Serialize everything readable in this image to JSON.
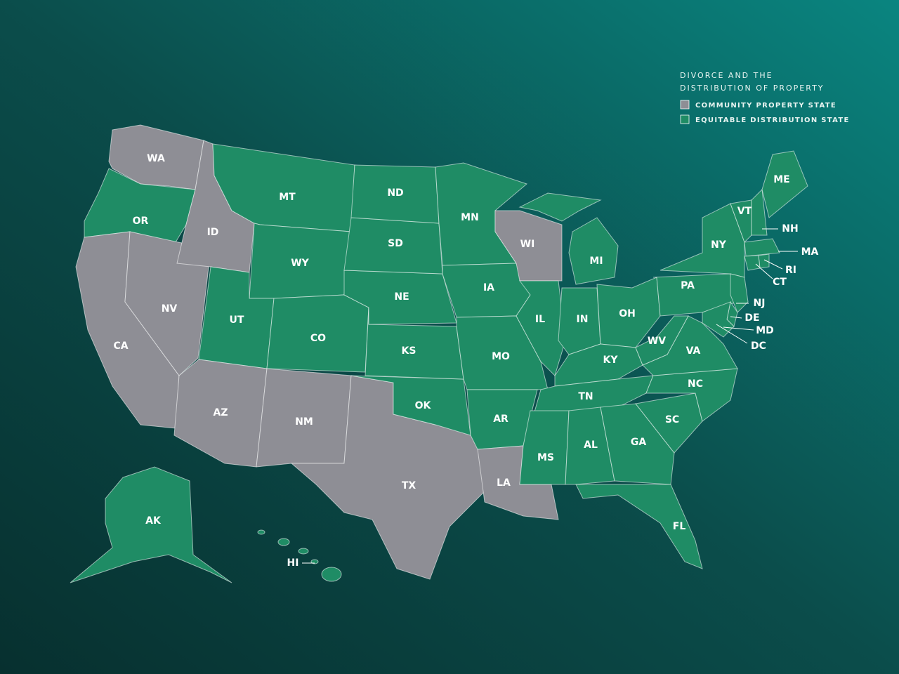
{
  "legend": {
    "title": [
      "DIVORCE AND THE",
      "DISTRIBUTION OF PROPERTY"
    ],
    "items": [
      {
        "label": "COMMUNITY PROPERTY STATE",
        "color": "#8e8e95"
      },
      {
        "label": "EQUITABLE DISTRIBUTION STATE",
        "color": "#1f8c65"
      }
    ]
  },
  "states": [
    {
      "label": "WA",
      "category": 0
    },
    {
      "label": "OR",
      "category": 1
    },
    {
      "label": "CA",
      "category": 0
    },
    {
      "label": "NV",
      "category": 0
    },
    {
      "label": "ID",
      "category": 0
    },
    {
      "label": "MT",
      "category": 1
    },
    {
      "label": "WY",
      "category": 1
    },
    {
      "label": "UT",
      "category": 1
    },
    {
      "label": "CO",
      "category": 1
    },
    {
      "label": "AZ",
      "category": 0
    },
    {
      "label": "NM",
      "category": 0
    },
    {
      "label": "TX",
      "category": 0
    },
    {
      "label": "OK",
      "category": 1
    },
    {
      "label": "KS",
      "category": 1
    },
    {
      "label": "NE",
      "category": 1
    },
    {
      "label": "SD",
      "category": 1
    },
    {
      "label": "ND",
      "category": 1
    },
    {
      "label": "MN",
      "category": 1
    },
    {
      "label": "IA",
      "category": 1
    },
    {
      "label": "MO",
      "category": 1
    },
    {
      "label": "AR",
      "category": 1
    },
    {
      "label": "LA",
      "category": 0
    },
    {
      "label": "WI",
      "category": 0
    },
    {
      "label": "IL",
      "category": 1
    },
    {
      "label": "MI",
      "category": 1
    },
    {
      "label": "IN",
      "category": 1
    },
    {
      "label": "OH",
      "category": 1
    },
    {
      "label": "KY",
      "category": 1
    },
    {
      "label": "TN",
      "category": 1
    },
    {
      "label": "MS",
      "category": 1
    },
    {
      "label": "AL",
      "category": 1
    },
    {
      "label": "GA",
      "category": 1
    },
    {
      "label": "FL",
      "category": 1
    },
    {
      "label": "SC",
      "category": 1
    },
    {
      "label": "NC",
      "category": 1
    },
    {
      "label": "VA",
      "category": 1
    },
    {
      "label": "WV",
      "category": 1
    },
    {
      "label": "PA",
      "category": 1
    },
    {
      "label": "NY",
      "category": 1
    },
    {
      "label": "NJ",
      "category": 1
    },
    {
      "label": "DE",
      "category": 1
    },
    {
      "label": "MD",
      "category": 1
    },
    {
      "label": "DC",
      "category": 1
    },
    {
      "label": "VT",
      "category": 1
    },
    {
      "label": "NH",
      "category": 1
    },
    {
      "label": "ME",
      "category": 1
    },
    {
      "label": "MA",
      "category": 1
    },
    {
      "label": "RI",
      "category": 1
    },
    {
      "label": "CT",
      "category": 1
    },
    {
      "label": "AK",
      "category": 1
    },
    {
      "label": "HI",
      "category": 1
    }
  ]
}
